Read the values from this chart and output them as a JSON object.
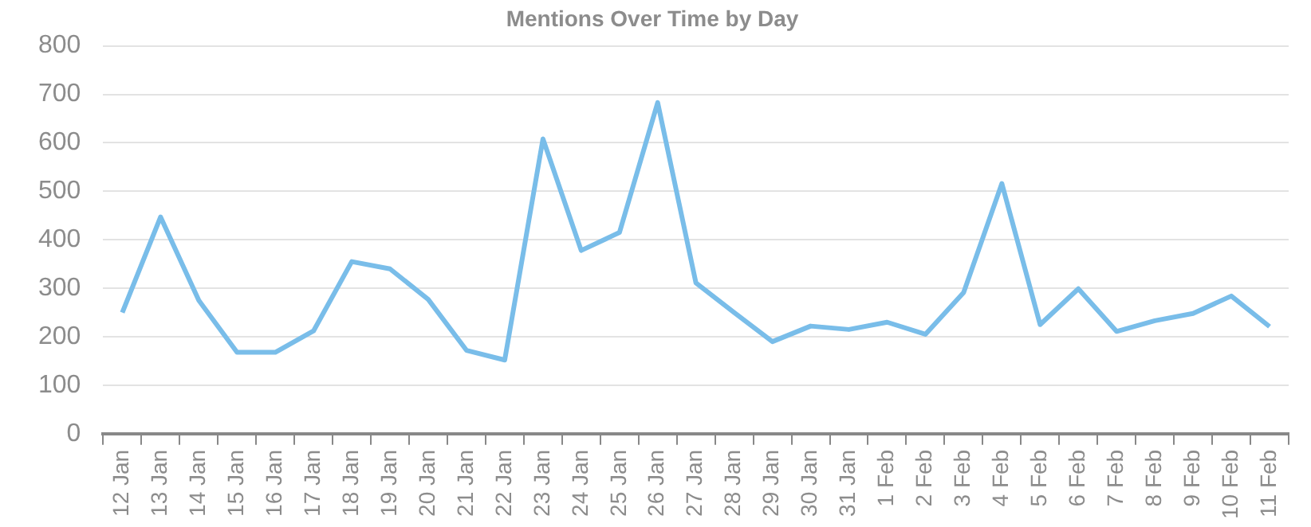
{
  "chart_data": {
    "type": "line",
    "title": "Mentions Over Time by Day",
    "categories": [
      "12 Jan",
      "13 Jan",
      "14 Jan",
      "15 Jan",
      "16 Jan",
      "17 Jan",
      "18 Jan",
      "19 Jan",
      "20 Jan",
      "21 Jan",
      "22 Jan",
      "23 Jan",
      "24 Jan",
      "25 Jan",
      "26 Jan",
      "27 Jan",
      "28 Jan",
      "29 Jan",
      "30 Jan",
      "31 Jan",
      "1 Feb",
      "2 Feb",
      "3 Feb",
      "4 Feb",
      "5 Feb",
      "6 Feb",
      "7 Feb",
      "8 Feb",
      "9 Feb",
      "10 Feb",
      "11 Feb"
    ],
    "series": [
      {
        "color": "#79bde9",
        "values": [
          250,
          447,
          275,
          168,
          168,
          212,
          355,
          340,
          277,
          172,
          152,
          608,
          378,
          415,
          683,
          311,
          250,
          190,
          222,
          215,
          230,
          205,
          291,
          516,
          225,
          299,
          211,
          233,
          248,
          284,
          221
        ]
      }
    ],
    "ylim": [
      0,
      800
    ],
    "yticks": [
      0,
      100,
      200,
      300,
      400,
      500,
      600,
      700,
      800
    ],
    "grid": "y",
    "legend": false,
    "marker": "none",
    "line_style": "solid"
  }
}
